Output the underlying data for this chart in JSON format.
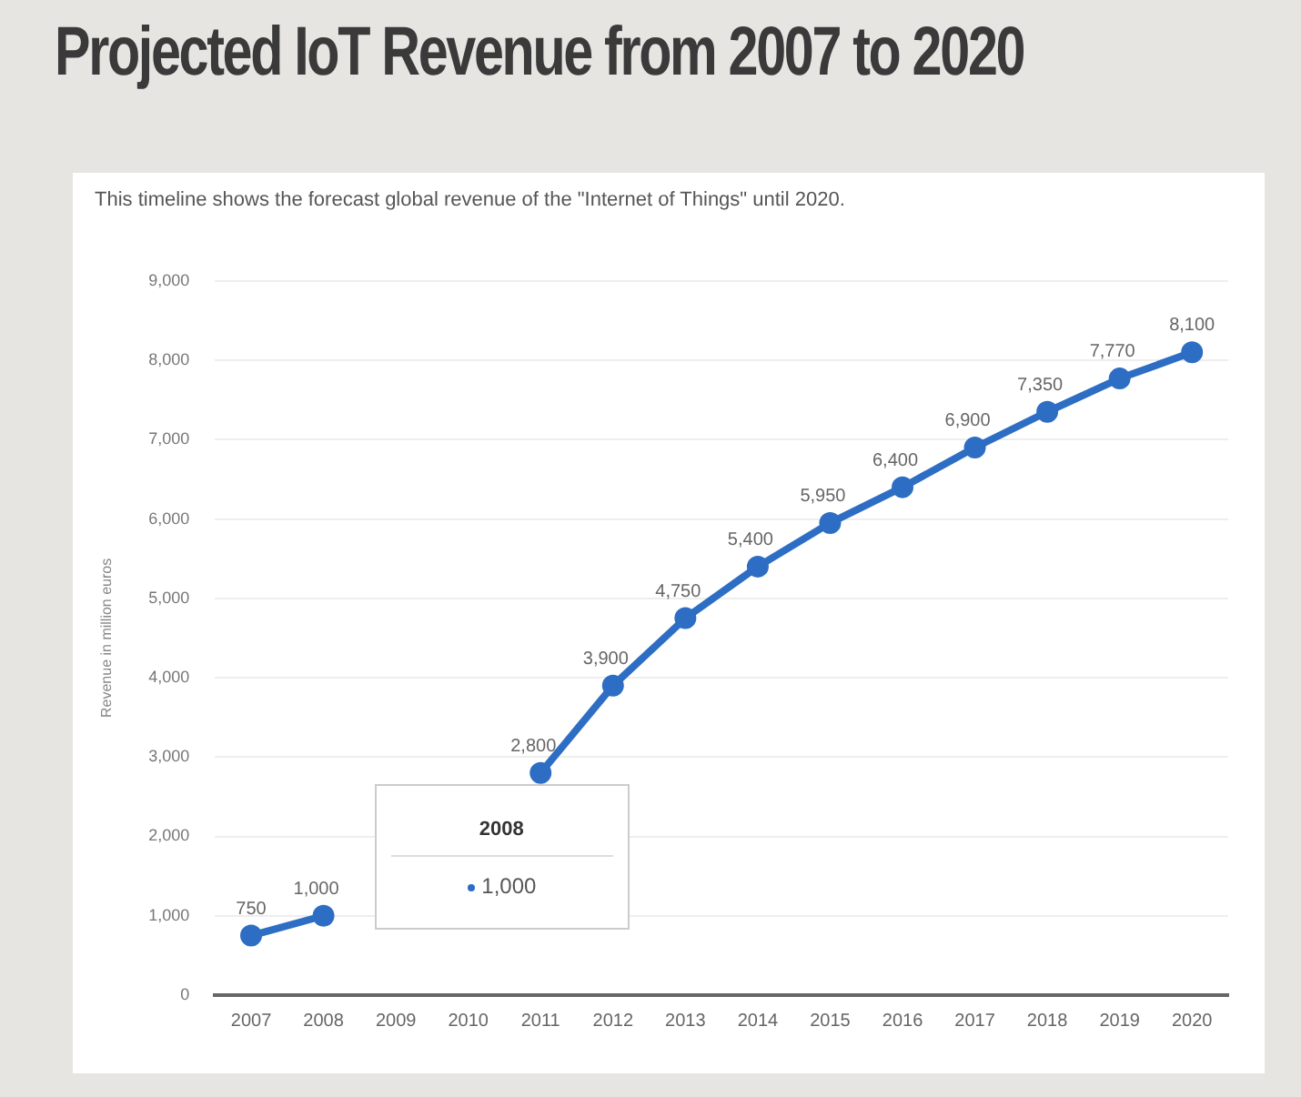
{
  "chart_data": {
    "type": "line",
    "title": "Projected IoT Revenue from 2007 to 2020",
    "subtitle": "This timeline shows the forecast global revenue of the \"Internet of Things\" until 2020.",
    "ylabel": "Revenue in million euros",
    "categories": [
      "2007",
      "2008",
      "2009",
      "2010",
      "2011",
      "2012",
      "2013",
      "2014",
      "2015",
      "2016",
      "2017",
      "2018",
      "2019",
      "2020"
    ],
    "series": [
      {
        "color": "#2d6ec4",
        "values": [
          750,
          1000,
          null,
          null,
          2800,
          3900,
          4750,
          5400,
          5950,
          6400,
          6900,
          7350,
          7770,
          8100
        ]
      }
    ],
    "ylim": [
      0,
      9000
    ],
    "yticks": [
      {
        "value": 0,
        "label": "0"
      },
      {
        "value": 1000,
        "label": "1,000"
      },
      {
        "value": 2000,
        "label": "2,000"
      },
      {
        "value": 3000,
        "label": "3,000"
      },
      {
        "value": 4000,
        "label": "4,000"
      },
      {
        "value": 5000,
        "label": "5,000"
      },
      {
        "value": 6000,
        "label": "6,000"
      },
      {
        "value": 7000,
        "label": "7,000"
      },
      {
        "value": 8000,
        "label": "8,000"
      },
      {
        "value": 9000,
        "label": "9,000"
      }
    ],
    "value_labels": [
      "750",
      "1,000",
      null,
      null,
      "2,800",
      "3,900",
      "4,750",
      "5,400",
      "5,950",
      "6,400",
      "6,900",
      "7,350",
      "7,770",
      "8,100"
    ],
    "grid": "y",
    "marker": "circle",
    "line_style": "solid",
    "legend": false,
    "annotations": [
      "2008",
      "1,000"
    ]
  }
}
